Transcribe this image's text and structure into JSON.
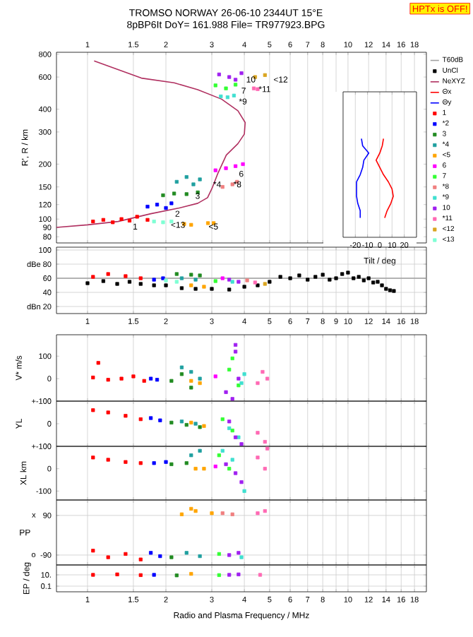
{
  "chart_data": [
    {
      "type": "scatter",
      "title": "TROMSO NORWAY   26-06-10 2344UT 15°E",
      "subtitle": "8pBP6It DoY= 161.988 File= TR977923.BPG",
      "ylabel": "R', R / km",
      "log": "xy",
      "grid": "x",
      "legend": "right",
      "marker": "square",
      "xlim": [
        0.76,
        20
      ],
      "ylim": [
        74,
        820
      ],
      "xticks": [
        1,
        1.5,
        2,
        3,
        4,
        5,
        6,
        7,
        8,
        {
          "value": 9,
          "label": null
        },
        10,
        12,
        14,
        16,
        18
      ],
      "yticks": [
        80,
        90,
        100,
        120,
        150,
        200,
        300,
        400,
        600,
        800
      ],
      "annotations": [
        "HPTx is OFF!",
        {
          "text": "1",
          "x": 1.48,
          "y": 91
        },
        {
          "text": "<13",
          "x": 2.07,
          "y": 93
        },
        {
          "text": "<5",
          "x": 2.89,
          "y": 91
        },
        {
          "text": "2",
          "x": 2.15,
          "y": 107
        },
        {
          "text": "3",
          "x": 2.57,
          "y": 134
        },
        {
          "text": "*4",
          "x": 3.01,
          "y": 155
        },
        {
          "text": "*8",
          "x": 3.6,
          "y": 155
        },
        {
          "text": "6",
          "x": 3.78,
          "y": 177
        },
        {
          "text": "*9",
          "x": 3.78,
          "y": 441
        },
        {
          "text": "7",
          "x": 3.86,
          "y": 505
        },
        {
          "text": "10",
          "x": 4.03,
          "y": 582
        },
        {
          "text": "*11",
          "x": 4.5,
          "y": 515
        },
        {
          "text": "<12",
          "x": 5.13,
          "y": 582
        }
      ],
      "series": [
        {
          "name": "NeXYZ",
          "type": "line",
          "marker": "none",
          "color": "#b03060",
          "x": [
            0.76,
            1.0,
            1.31,
            1.75,
            2.25,
            2.65,
            2.89,
            3.01,
            3.16,
            3.41,
            3.78,
            4.0,
            4.03,
            3.78,
            3.27,
            2.65,
            2.15,
            1.61,
            1.06
          ],
          "values": [
            90,
            93,
            97,
            107,
            115,
            122,
            131,
            148,
            177,
            224,
            259,
            292,
            338,
            392,
            454,
            511,
            558,
            592,
            736
          ]
        },
        {
          "name": "1",
          "color": "#ff0000",
          "x": [
            1.05,
            1.15,
            1.25,
            1.35,
            1.45,
            1.55,
            1.7
          ],
          "values": [
            97,
            99,
            96,
            100,
            98,
            103,
            99
          ]
        },
        {
          "name": "*2",
          "color": "#0000ff",
          "x": [
            1.7,
            1.85,
            2.0,
            2.1
          ],
          "values": [
            117,
            120,
            115,
            122
          ]
        },
        {
          "name": "3",
          "color": "#228b22",
          "x": [
            1.95,
            2.15,
            2.4,
            2.65
          ],
          "values": [
            135,
            138,
            137,
            140
          ]
        },
        {
          "name": "*4",
          "color": "#20a0a0",
          "x": [
            2.2,
            2.4,
            2.55,
            2.7
          ],
          "values": [
            160,
            170,
            155,
            165
          ]
        },
        {
          "name": "<5",
          "color": "#ffa500",
          "x": [
            2.35,
            2.5,
            2.9,
            3.05
          ],
          "values": [
            94,
            93,
            95,
            95
          ]
        },
        {
          "name": "6",
          "color": "#ff00ff",
          "x": [
            3.1,
            3.4,
            3.7,
            3.95
          ],
          "values": [
            185,
            190,
            195,
            200
          ]
        },
        {
          "name": "7",
          "color": "#33ff33",
          "x": [
            3.1,
            3.4,
            3.7
          ],
          "values": [
            540,
            520,
            545
          ]
        },
        {
          "name": "*8",
          "color": "#f08080",
          "x": [
            3.3,
            3.6,
            3.75
          ],
          "values": [
            150,
            155,
            160
          ]
        },
        {
          "name": "*9",
          "color": "#40e0d0",
          "x": [
            3.25,
            3.45,
            3.65
          ],
          "values": [
            470,
            465,
            475
          ]
        },
        {
          "name": "10",
          "color": "#a020f0",
          "x": [
            3.2,
            3.5,
            3.9,
            3.7
          ],
          "values": [
            620,
            600,
            630,
            580
          ]
        },
        {
          "name": "*11",
          "color": "#ff69b4",
          "x": [
            4.35,
            4.5
          ],
          "values": [
            520,
            515
          ]
        },
        {
          "name": "<12",
          "color": "#daa520",
          "x": [
            4.4,
            4.8
          ],
          "values": [
            600,
            615
          ]
        },
        {
          "name": "<13",
          "color": "#7fffd4",
          "x": [
            1.8,
            1.95,
            2.1
          ],
          "values": [
            97,
            96,
            97
          ]
        }
      ]
    },
    {
      "type": "line",
      "orientation": "horizontal",
      "xlabel": "Tilt / deg",
      "grid": "x",
      "xlim": [
        -30,
        30
      ],
      "xticks": [
        -20,
        -10,
        0,
        10,
        20
      ],
      "categories": [
        null,
        null,
        null,
        null,
        null,
        null,
        null,
        null,
        null,
        null,
        null,
        null
      ],
      "series": [
        {
          "name": "Θx",
          "color": "#ff0000",
          "values": [
            3,
            2,
            0,
            -3,
            0,
            3,
            7,
            10,
            11,
            9,
            6,
            4
          ]
        },
        {
          "name": "Θy",
          "color": "#0000ff",
          "values": [
            -15,
            -14,
            -9,
            -13,
            -14,
            -16,
            -19,
            -19,
            -19,
            -18,
            -16,
            -16
          ]
        }
      ]
    },
    {
      "type": "scatter",
      "log": "x",
      "grid": true,
      "marker": "square",
      "xlim": [
        0.76,
        20
      ],
      "ylim": [
        10,
        104
      ],
      "xticks": [
        1,
        1.5,
        2,
        3,
        4,
        5,
        6,
        7,
        8,
        9,
        10,
        12,
        14,
        16,
        18
      ],
      "yticks": [
        100,
        {
          "value": 80,
          "label": "dBe 80"
        },
        60,
        40,
        {
          "value": 20,
          "label": "dBn 20"
        }
      ],
      "series": [
        {
          "name": "T60dB",
          "type": "line",
          "marker": "none",
          "color": "#a0a0a0",
          "x": [
            0.76,
            20
          ],
          "values": [
            60,
            60
          ]
        },
        {
          "name": "UnCl",
          "color": "#000000",
          "x": [
            1.0,
            1.15,
            1.3,
            1.45,
            1.6,
            1.8,
            2.0,
            2.3,
            2.6,
            3.0,
            3.5,
            4.0,
            4.5,
            5.0,
            5.5,
            6.0,
            6.5,
            7.0,
            7.5,
            8.0,
            8.5,
            9.0,
            9.5,
            10.0,
            10.5,
            11.0,
            11.5,
            12.0,
            12.5,
            13.0,
            13.5,
            14.0,
            14.5,
            15.0
          ],
          "values": [
            53,
            56,
            52,
            55,
            52,
            50,
            50,
            46,
            45,
            45,
            44,
            48,
            50,
            55,
            62,
            60,
            64,
            58,
            62,
            65,
            58,
            60,
            66,
            68,
            60,
            62,
            57,
            60,
            54,
            55,
            50,
            45,
            43,
            42
          ]
        },
        {
          "color": "#ff0000",
          "x": [
            1.05,
            1.2,
            1.4,
            1.6
          ],
          "values": [
            62,
            66,
            63,
            60
          ]
        },
        {
          "color": "#0000ff",
          "x": [
            1.8,
            1.95
          ],
          "values": [
            58,
            60
          ]
        },
        {
          "color": "#7fffd4",
          "x": [
            2.0,
            2.2
          ],
          "values": [
            57,
            55
          ]
        },
        {
          "color": "#228b22",
          "x": [
            2.2,
            2.5,
            2.7
          ],
          "values": [
            66,
            65,
            64
          ]
        },
        {
          "color": "#20a0a0",
          "x": [
            2.3,
            2.6
          ],
          "values": [
            60,
            58
          ]
        },
        {
          "color": "#ffa500",
          "x": [
            2.5,
            2.8
          ],
          "values": [
            50,
            48
          ]
        },
        {
          "color": "#33ff33",
          "x": [
            3.1
          ],
          "values": [
            56
          ]
        },
        {
          "color": "#ff00ff",
          "x": [
            3.3
          ],
          "values": [
            60
          ]
        },
        {
          "color": "#a020f0",
          "x": [
            3.5,
            3.8
          ],
          "values": [
            58,
            55
          ]
        },
        {
          "color": "#40e0d0",
          "x": [
            3.6
          ],
          "values": [
            55
          ]
        },
        {
          "color": "#f08080",
          "x": [
            4.1
          ],
          "values": [
            57
          ]
        },
        {
          "color": "#ff69b4",
          "x": [
            4.4
          ],
          "values": [
            54
          ]
        },
        {
          "color": "#daa520",
          "x": [
            4.8
          ],
          "values": [
            52
          ]
        }
      ]
    },
    {
      "type": "scatter",
      "ylabel": "V* m/s",
      "log": "x",
      "grid": "x",
      "marker": "square",
      "tick_labels": "y",
      "xlim": [
        0.76,
        20
      ],
      "ylim": [
        -100,
        195
      ],
      "xticks": [
        1,
        1.5,
        2,
        3,
        4,
        5,
        6,
        7,
        8,
        9,
        10,
        12,
        14,
        16,
        18
      ],
      "yticks": [
        100,
        0,
        {
          "value": -100,
          "label": "+-100"
        }
      ],
      "series": [
        {
          "color": "#ff0000",
          "x": [
            1.05,
            1.1,
            1.2,
            1.35,
            1.5,
            1.65
          ],
          "values": [
            5,
            70,
            -5,
            0,
            10,
            -10
          ]
        },
        {
          "color": "#0000ff",
          "x": [
            1.75,
            1.85
          ],
          "values": [
            0,
            -5
          ]
        },
        {
          "color": "#228b22",
          "x": [
            2.1,
            2.3,
            2.5
          ],
          "values": [
            -10,
            20,
            -40
          ]
        },
        {
          "color": "#20a0a0",
          "x": [
            2.3,
            2.5,
            2.7
          ],
          "values": [
            50,
            30,
            0
          ]
        },
        {
          "color": "#ffa500",
          "x": [
            2.5,
            2.7
          ],
          "values": [
            -10,
            -20
          ]
        },
        {
          "color": "#ff00ff",
          "x": [
            3.1
          ],
          "values": [
            10
          ]
        },
        {
          "color": "#33ff33",
          "x": [
            3.5,
            3.6,
            3.8
          ],
          "values": [
            40,
            90,
            -30
          ]
        },
        {
          "color": "#40e0d0",
          "x": [
            3.9,
            4.0
          ],
          "values": [
            -20,
            20
          ]
        },
        {
          "color": "#a020f0",
          "x": [
            3.4,
            3.6,
            3.7,
            3.8,
            3.7
          ],
          "values": [
            -60,
            -90,
            120,
            0,
            150
          ]
        },
        {
          "color": "#ff69b4",
          "x": [
            4.5,
            4.7,
            4.9
          ],
          "values": [
            -20,
            30,
            0
          ]
        }
      ]
    },
    {
      "type": "scatter",
      "ylabel": "YL",
      "log": "x",
      "grid": "x",
      "marker": "square",
      "tick_labels": "y",
      "xlim": [
        0.76,
        20
      ],
      "ylim": [
        -100,
        100
      ],
      "xticks": [
        1,
        1.5,
        2,
        3,
        4,
        5,
        6,
        7,
        8,
        9,
        10,
        12,
        14,
        16,
        18
      ],
      "yticks": [
        0,
        {
          "value": -100,
          "label": "+-100"
        }
      ],
      "series": [
        {
          "color": "#ff0000",
          "x": [
            1.05,
            1.2,
            1.4,
            1.6
          ],
          "values": [
            60,
            50,
            35,
            20
          ]
        },
        {
          "color": "#0000ff",
          "x": [
            1.75,
            1.9
          ],
          "values": [
            25,
            15
          ]
        },
        {
          "color": "#228b22",
          "x": [
            2.1,
            2.4,
            2.7
          ],
          "values": [
            5,
            -5,
            -15
          ]
        },
        {
          "color": "#20a0a0",
          "x": [
            2.3,
            2.6
          ],
          "values": [
            10,
            0
          ]
        },
        {
          "color": "#ffa500",
          "x": [
            2.5,
            2.8
          ],
          "values": [
            5,
            -10
          ]
        },
        {
          "color": "#33ff33",
          "x": [
            3.3,
            3.6
          ],
          "values": [
            20,
            -30
          ]
        },
        {
          "color": "#40e0d0",
          "x": [
            3.5,
            3.8
          ],
          "values": [
            -20,
            -60
          ]
        },
        {
          "color": "#a020f0",
          "x": [
            3.5,
            3.7,
            3.9
          ],
          "values": [
            10,
            -60,
            -90
          ]
        },
        {
          "color": "#ff69b4",
          "x": [
            4.5,
            4.8
          ],
          "values": [
            -40,
            -80
          ]
        }
      ]
    },
    {
      "type": "scatter",
      "ylabel": "XL   km",
      "log": "x",
      "grid": "x",
      "marker": "square",
      "tick_labels": "y",
      "xlim": [
        0.76,
        20
      ],
      "ylim": [
        -140,
        100
      ],
      "xticks": [
        1,
        1.5,
        2,
        3,
        4,
        5,
        6,
        7,
        8,
        9,
        10,
        12,
        14,
        16,
        18
      ],
      "yticks": [
        0,
        -100
      ],
      "series": [
        {
          "color": "#ff0000",
          "x": [
            1.05,
            1.2,
            1.4,
            1.6
          ],
          "values": [
            50,
            40,
            30,
            25
          ]
        },
        {
          "color": "#0000ff",
          "x": [
            1.8,
            2.0
          ],
          "values": [
            25,
            30
          ]
        },
        {
          "color": "#228b22",
          "x": [
            2.1,
            2.4
          ],
          "values": [
            20,
            25
          ]
        },
        {
          "color": "#20a0a0",
          "x": [
            2.5,
            2.7
          ],
          "values": [
            60,
            80
          ]
        },
        {
          "color": "#ffa500",
          "x": [
            2.6,
            2.8
          ],
          "values": [
            0,
            0
          ]
        },
        {
          "color": "#ff00ff",
          "x": [
            3.1
          ],
          "values": [
            10
          ]
        },
        {
          "color": "#33ff33",
          "x": [
            3.2,
            3.5
          ],
          "values": [
            60,
            0
          ]
        },
        {
          "color": "#40e0d0",
          "x": [
            3.3,
            3.6,
            4.0
          ],
          "values": [
            80,
            40,
            -100
          ]
        },
        {
          "color": "#a020f0",
          "x": [
            3.4,
            3.7,
            3.9
          ],
          "values": [
            20,
            -20,
            -60
          ]
        },
        {
          "color": "#ff69b4",
          "x": [
            4.5,
            4.8,
            4.9
          ],
          "values": [
            50,
            0,
            90
          ]
        }
      ]
    },
    {
      "type": "scatter",
      "ylabel": "PP",
      "log": "x",
      "grid": true,
      "marker": "square",
      "tick_labels": "y",
      "xlim": [
        0.76,
        20
      ],
      "ylim": [
        -135,
        160
      ],
      "xticks": [
        1,
        1.5,
        2,
        3,
        4,
        5,
        6,
        7,
        8,
        9,
        10,
        12,
        14,
        16,
        18
      ],
      "yticks": [
        90,
        -90
      ],
      "annotations": [
        "x",
        "o"
      ],
      "series": [
        {
          "color": "#ffa500",
          "x": [
            2.3,
            2.5,
            2.6,
            3.0
          ],
          "values": [
            95,
            120,
            110,
            100
          ]
        },
        {
          "color": "#f08080",
          "x": [
            3.3,
            3.6
          ],
          "values": [
            100,
            95
          ]
        },
        {
          "color": "#ff69b4",
          "x": [
            4.5,
            4.8
          ],
          "values": [
            100,
            110
          ]
        },
        {
          "color": "#ff0000",
          "x": [
            1.05,
            1.2,
            1.4,
            1.6
          ],
          "values": [
            -70,
            -100,
            -85,
            -110
          ]
        },
        {
          "color": "#0000ff",
          "x": [
            1.75,
            1.9
          ],
          "values": [
            -80,
            -95
          ]
        },
        {
          "color": "#228b22",
          "x": [
            2.1
          ],
          "values": [
            -100
          ]
        },
        {
          "color": "#20a0a0",
          "x": [
            2.4,
            2.7
          ],
          "values": [
            -80,
            -95
          ]
        },
        {
          "color": "#33ff33",
          "x": [
            3.2
          ],
          "values": [
            -85
          ]
        },
        {
          "color": "#a020f0",
          "x": [
            3.5,
            3.8
          ],
          "values": [
            -90,
            -80
          ]
        },
        {
          "color": "#40e0d0",
          "x": [
            3.9
          ],
          "values": [
            -100
          ]
        }
      ]
    },
    {
      "type": "scatter",
      "xlabel": "Radio and Plasma Frequency / MHz",
      "ylabel": "EP / deg",
      "log": "xy",
      "grid": true,
      "marker": "square",
      "xlim": [
        0.76,
        20
      ],
      "ylim": [
        0.01,
        560
      ],
      "xticks": [
        1,
        1.5,
        2,
        3,
        4,
        5,
        6,
        7,
        8,
        {
          "value": 9,
          "label": null
        },
        10,
        12,
        14,
        16,
        18
      ],
      "yticks": [
        {
          "value": 10,
          "label": "10."
        },
        0.1
      ],
      "series": [
        {
          "color": "#ff0000",
          "x": [
            1.05,
            1.3,
            1.6
          ],
          "values": [
            10,
            12,
            9
          ]
        },
        {
          "color": "#0000ff",
          "x": [
            1.8
          ],
          "values": [
            10
          ]
        },
        {
          "color": "#228b22",
          "x": [
            2.2
          ],
          "values": [
            8
          ]
        },
        {
          "color": "#ffa500",
          "x": [
            2.5
          ],
          "values": [
            15
          ]
        },
        {
          "color": "#33ff33",
          "x": [
            3.2
          ],
          "values": [
            9
          ]
        },
        {
          "color": "#a020f0",
          "x": [
            3.5,
            3.8
          ],
          "values": [
            10,
            12
          ]
        },
        {
          "color": "#ff69b4",
          "x": [
            4.6
          ],
          "values": [
            10
          ]
        }
      ]
    }
  ]
}
